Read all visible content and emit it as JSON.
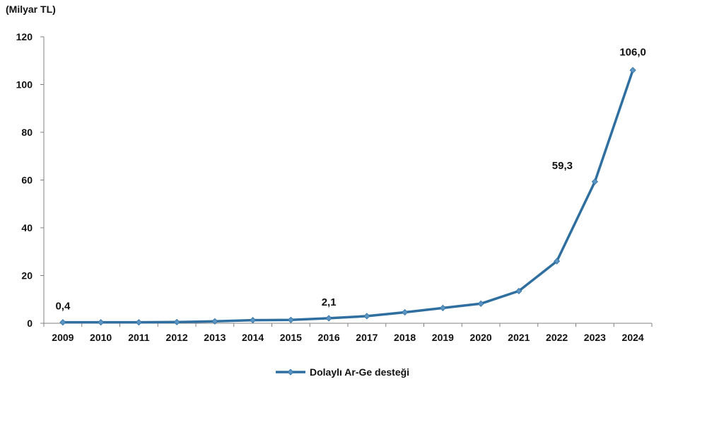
{
  "chart_data": {
    "type": "line",
    "unit_label": "(Milyar TL)",
    "x": [
      "2009",
      "2010",
      "2011",
      "2012",
      "2013",
      "2014",
      "2015",
      "2016",
      "2017",
      "2018",
      "2019",
      "2020",
      "2021",
      "2022",
      "2023",
      "2024"
    ],
    "series": [
      {
        "name": "Dolaylı Ar-Ge desteği",
        "values": [
          0.4,
          0.4,
          0.4,
          0.5,
          0.8,
          1.3,
          1.4,
          2.1,
          3.0,
          4.6,
          6.4,
          8.2,
          13.5,
          26.0,
          59.3,
          106.0
        ]
      }
    ],
    "data_labels": [
      {
        "x": "2009",
        "text": "0,4"
      },
      {
        "x": "2016",
        "text": "2,1"
      },
      {
        "x": "2023",
        "text": "59,3"
      },
      {
        "x": "2024",
        "text": "106,0"
      }
    ],
    "ylim": [
      0,
      120
    ],
    "y_ticks": [
      "0",
      "20",
      "40",
      "60",
      "80",
      "100",
      "120"
    ],
    "grid": false,
    "legend_position": "bottom",
    "colors": {
      "series": "#2f6fa0",
      "marker": "#5b95c3",
      "axis": "#808080"
    }
  }
}
